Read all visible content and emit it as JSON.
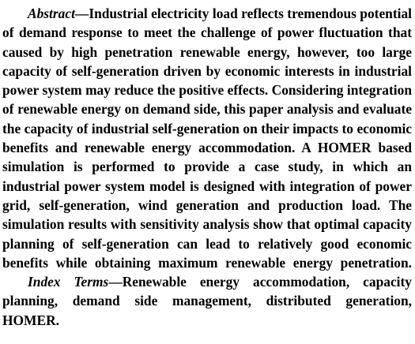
{
  "abstract": {
    "label": "Abstract",
    "text": "—Industrial electricity load reflects tremendous potential of demand response to meet the challenge of power fluctuation that caused by high penetration renewable energy, however, too large capacity of self-generation driven by economic interests in industrial power system may reduce the positive effects. Considering integration of renewable energy on demand side, this paper analysis and evaluate the capacity of industrial self-generation on their impacts to economic benefits and renewable energy accommodation. A HOMER based simulation is performed to provide a case study, in which an industrial power system model is designed with integration of power grid, self-generation, wind generation and production load. The simulation results with sensitivity analysis show that optimal capacity planning of self-generation can lead to relatively good economic benefits while obtaining maximum renewable energy penetration."
  },
  "index_terms": {
    "label": "Index Terms",
    "text": "—Renewable energy accommodation, capacity planning, demand side management, distributed generation, HOMER."
  }
}
